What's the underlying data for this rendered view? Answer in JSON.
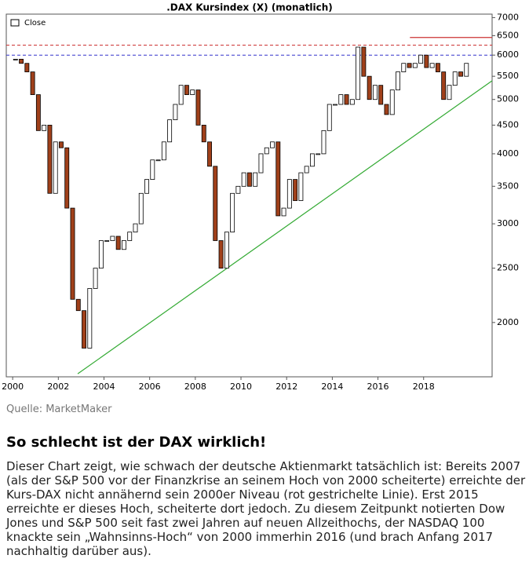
{
  "chart_data": {
    "type": "candlestick",
    "title": ".DAX Kursindex (X) (monatlich)",
    "log_scale": true,
    "series": [
      {
        "name": "Close",
        "up_color": "#ffffff",
        "down_color": "#a0401a",
        "x": [
          2000.125,
          2000.375,
          2000.625,
          2000.875,
          2001.125,
          2001.375,
          2001.625,
          2001.875,
          2002.125,
          2002.375,
          2002.625,
          2002.875,
          2003.125,
          2003.375,
          2003.625,
          2003.875,
          2004.125,
          2004.375,
          2004.625,
          2004.875,
          2005.125,
          2005.375,
          2005.625,
          2005.875,
          2006.125,
          2006.375,
          2006.625,
          2006.875,
          2007.125,
          2007.375,
          2007.625,
          2007.875,
          2008.125,
          2008.375,
          2008.625,
          2008.875,
          2009.125,
          2009.375,
          2009.625,
          2009.875,
          2010.125,
          2010.375,
          2010.625,
          2010.875,
          2011.125,
          2011.375,
          2011.625,
          2011.875,
          2012.125,
          2012.375,
          2012.625,
          2012.875,
          2013.125,
          2013.375,
          2013.625,
          2013.875,
          2014.125,
          2014.375,
          2014.625,
          2014.875,
          2015.125,
          2015.375,
          2015.625,
          2015.875,
          2016.125,
          2016.375,
          2016.625,
          2016.875,
          2017.125,
          2017.375,
          2017.625,
          2017.875,
          2018.125,
          2018.375,
          2018.625,
          2018.875,
          2019.125,
          2019.375,
          2019.625,
          2019.875
        ],
        "values": [
          5900,
          5800,
          5600,
          5100,
          4400,
          4500,
          3400,
          4200,
          4100,
          3200,
          2200,
          2100,
          1800,
          2300,
          2500,
          2800,
          2800,
          2850,
          2700,
          2800,
          2900,
          3000,
          3400,
          3600,
          3900,
          3900,
          4200,
          4600,
          4900,
          5300,
          5100,
          5200,
          4500,
          4200,
          3800,
          2800,
          2500,
          2900,
          3400,
          3500,
          3700,
          3500,
          3700,
          4000,
          4100,
          4200,
          3100,
          3200,
          3600,
          3300,
          3700,
          3800,
          4000,
          4000,
          4400,
          4900,
          4900,
          5100,
          4900,
          5000,
          6200,
          5500,
          5000,
          5300,
          4900,
          4700,
          5200,
          5600,
          5800,
          5700,
          5800,
          6000,
          5700,
          5800,
          5600,
          5000,
          5300,
          5600,
          5500,
          5800
        ]
      }
    ],
    "hlines": [
      {
        "value": 6000,
        "color": "#3333cc",
        "style": "dashed"
      },
      {
        "value": 6250,
        "color": "#cc3333",
        "style": "dashed"
      }
    ],
    "segments": [
      {
        "x": [
          2017.4,
          2021.0
        ],
        "y": [
          6450,
          6450
        ],
        "color": "#cc3333"
      },
      {
        "x": [
          2002.85,
          2021.0
        ],
        "y": [
          1620,
          5400
        ],
        "color": "#33aa33"
      }
    ],
    "xlim": [
      1999.72,
      2021.0
    ],
    "ylim": [
      1600,
      7100
    ],
    "xticks": [
      2000,
      2002,
      2004,
      2006,
      2008,
      2010,
      2012,
      2014,
      2016,
      2018
    ],
    "yticks": [
      2000,
      2500,
      3000,
      3500,
      4000,
      4500,
      5000,
      5500,
      6000,
      6500,
      7000
    ]
  },
  "source": "Quelle: MarketMaker",
  "heading": "So schlecht ist der DAX wirklich!",
  "paragraph": "Dieser Chart zeigt, wie schwach der deutsche Aktienmarkt tatsächlich ist: Bereits 2007 (als der S&P 500 vor der Finanzkrise an seinem Hoch von 2000 scheiterte) erreichte der Kurs-DAX nicht annähernd sein 2000er Niveau (rot gestrichelte Linie). Erst 2015 erreichte er dieses Hoch, scheiterte dort jedoch. Zu diesem Zeitpunkt notierten Dow Jones und S&P 500 seit fast zwei Jahren auf neuen Allzeithochs, der NASDAQ 100 knackte sein „Wahnsinns-Hoch“ von 2000 immerhin 2016 (und brach Anfang 2017 nachhaltig darüber aus)."
}
